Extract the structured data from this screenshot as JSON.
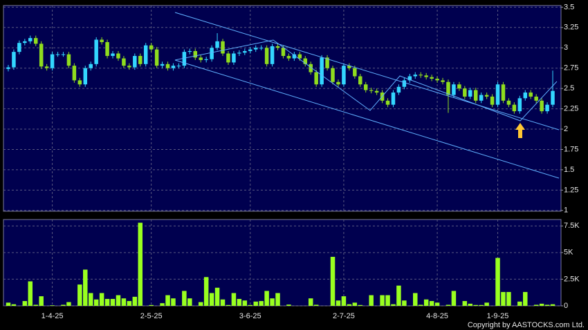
{
  "chart_data": [
    {
      "type": "candlestick",
      "open": [
        2.74,
        2.76,
        2.95,
        3.06,
        3.08,
        3.12,
        3.05,
        2.77,
        2.75,
        2.92,
        2.92,
        2.92,
        2.78,
        2.6,
        2.55,
        2.75,
        2.8,
        3.1,
        3.07,
        2.9,
        2.93,
        2.87,
        2.78,
        2.76,
        2.9,
        2.8,
        3.03,
        2.98,
        2.78,
        2.8,
        2.75,
        2.78,
        2.78,
        2.95,
        2.96,
        2.88,
        2.85,
        2.86,
        3.0,
        3.08,
        2.93,
        2.82,
        2.93,
        2.94,
        2.96,
        2.98,
        3.0,
        3.0,
        2.8,
        3.02,
        3.0,
        2.9,
        2.87,
        2.92,
        2.87,
        2.8,
        2.7,
        2.55,
        2.88,
        2.75,
        2.58,
        2.55,
        2.78,
        2.75,
        2.65,
        2.55,
        2.48,
        2.47,
        2.45,
        2.35,
        2.3,
        2.45,
        2.52,
        2.6,
        2.65,
        2.67,
        2.66,
        2.64,
        2.62,
        2.6,
        2.58,
        2.42,
        2.55,
        2.5,
        2.4,
        2.48,
        2.35,
        2.42,
        2.4,
        2.3,
        2.55,
        2.35,
        2.3,
        2.22,
        2.38,
        2.45,
        2.4,
        2.35,
        2.22,
        2.3
      ],
      "high": [
        2.79,
        2.98,
        3.09,
        3.11,
        3.15,
        3.15,
        3.08,
        2.8,
        2.95,
        2.95,
        2.95,
        2.95,
        2.81,
        2.63,
        2.78,
        2.83,
        3.13,
        3.13,
        3.1,
        2.96,
        2.96,
        2.9,
        2.81,
        2.93,
        2.93,
        3.06,
        3.06,
        3.01,
        2.83,
        2.83,
        2.81,
        2.81,
        2.98,
        2.99,
        2.99,
        2.91,
        2.89,
        3.03,
        3.18,
        3.11,
        2.96,
        2.96,
        2.97,
        2.99,
        3.01,
        3.03,
        3.03,
        3.03,
        3.05,
        3.05,
        3.03,
        2.93,
        2.95,
        2.95,
        2.9,
        2.83,
        2.73,
        2.91,
        2.91,
        2.78,
        2.61,
        2.81,
        2.81,
        2.78,
        2.68,
        2.58,
        2.51,
        2.5,
        2.48,
        2.38,
        2.48,
        2.55,
        2.63,
        2.68,
        2.7,
        2.7,
        2.69,
        2.67,
        2.65,
        2.63,
        2.61,
        2.58,
        2.58,
        2.53,
        2.51,
        2.51,
        2.45,
        2.45,
        2.43,
        2.58,
        2.58,
        2.38,
        2.33,
        2.41,
        2.48,
        2.48,
        2.43,
        2.38,
        2.33,
        2.72
      ],
      "low": [
        2.71,
        2.73,
        2.92,
        3.03,
        3.05,
        3.02,
        2.74,
        2.72,
        2.72,
        2.89,
        2.89,
        2.75,
        2.57,
        2.52,
        2.52,
        2.72,
        2.77,
        3.04,
        2.87,
        2.87,
        2.84,
        2.75,
        2.73,
        2.73,
        2.77,
        2.77,
        2.95,
        2.75,
        2.75,
        2.72,
        2.72,
        2.75,
        2.75,
        2.92,
        2.85,
        2.82,
        2.82,
        2.83,
        2.97,
        2.9,
        2.79,
        2.79,
        2.9,
        2.91,
        2.93,
        2.95,
        2.97,
        2.77,
        2.77,
        2.97,
        2.87,
        2.84,
        2.84,
        2.84,
        2.77,
        2.67,
        2.52,
        2.52,
        2.72,
        2.55,
        2.52,
        2.52,
        2.72,
        2.62,
        2.52,
        2.45,
        2.44,
        2.42,
        2.32,
        2.27,
        2.27,
        2.42,
        2.49,
        2.57,
        2.62,
        2.63,
        2.61,
        2.59,
        2.57,
        2.55,
        2.2,
        2.39,
        2.47,
        2.37,
        2.37,
        2.32,
        2.32,
        2.37,
        2.27,
        2.27,
        2.32,
        2.27,
        2.19,
        2.19,
        2.35,
        2.37,
        2.32,
        2.19,
        2.19,
        2.27
      ],
      "close": [
        2.76,
        2.95,
        3.06,
        3.08,
        3.12,
        3.05,
        2.77,
        2.75,
        2.92,
        2.92,
        2.92,
        2.78,
        2.6,
        2.55,
        2.75,
        2.8,
        3.1,
        3.07,
        2.9,
        2.93,
        2.87,
        2.78,
        2.76,
        2.9,
        2.8,
        3.03,
        2.98,
        2.78,
        2.8,
        2.75,
        2.78,
        2.78,
        2.95,
        2.96,
        2.88,
        2.85,
        2.86,
        3.0,
        3.08,
        2.93,
        2.82,
        2.93,
        2.94,
        2.96,
        2.98,
        3.0,
        3.0,
        2.8,
        3.02,
        3.0,
        2.9,
        2.87,
        2.92,
        2.87,
        2.8,
        2.7,
        2.55,
        2.88,
        2.75,
        2.58,
        2.55,
        2.78,
        2.75,
        2.65,
        2.55,
        2.48,
        2.47,
        2.45,
        2.35,
        2.3,
        2.45,
        2.52,
        2.6,
        2.65,
        2.67,
        2.66,
        2.64,
        2.62,
        2.6,
        2.58,
        2.42,
        2.55,
        2.5,
        2.4,
        2.48,
        2.35,
        2.42,
        2.4,
        2.3,
        2.55,
        2.35,
        2.3,
        2.22,
        2.38,
        2.45,
        2.4,
        2.35,
        2.22,
        2.3,
        2.47
      ],
      "up_color": "#33d6ff",
      "down_color": "#8fdc1e",
      "ylim": [
        0.99,
        3.52
      ],
      "yticks": [
        1,
        1.25,
        1.5,
        1.75,
        2,
        2.25,
        2.5,
        2.75,
        3,
        3.25,
        3.5
      ],
      "grid": true
    },
    {
      "type": "bar",
      "categories": [
        null,
        null,
        null,
        null,
        null,
        null,
        null,
        null,
        "1-4-25",
        null,
        null,
        null,
        null,
        null,
        null,
        null,
        null,
        null,
        null,
        null,
        null,
        null,
        null,
        null,
        null,
        null,
        "2-5-25",
        null,
        null,
        null,
        null,
        null,
        null,
        null,
        null,
        null,
        null,
        null,
        null,
        null,
        null,
        null,
        null,
        null,
        "3-6-25",
        null,
        null,
        null,
        null,
        null,
        null,
        null,
        null,
        null,
        null,
        null,
        null,
        null,
        null,
        null,
        null,
        "2-7-25",
        null,
        null,
        null,
        null,
        null,
        null,
        null,
        null,
        null,
        null,
        null,
        null,
        null,
        null,
        null,
        null,
        "4-8-25",
        null,
        null,
        null,
        null,
        null,
        null,
        null,
        null,
        null,
        null,
        "1-9-25",
        null,
        null,
        null,
        null,
        null,
        null,
        null,
        null,
        null,
        null
      ],
      "values": [
        300,
        150,
        0,
        450,
        2300,
        100,
        900,
        0,
        50,
        0,
        100,
        350,
        0,
        2000,
        3400,
        1200,
        600,
        1200,
        650,
        650,
        1000,
        700,
        450,
        850,
        7800,
        0,
        80,
        0,
        250,
        1000,
        700,
        0,
        1400,
        700,
        0,
        350,
        2700,
        1200,
        1700,
        600,
        80,
        1200,
        650,
        500,
        80,
        400,
        450,
        1400,
        700,
        1200,
        0,
        120,
        0,
        0,
        0,
        700,
        100,
        0,
        0,
        4600,
        500,
        900,
        150,
        300,
        80,
        0,
        1000,
        0,
        1000,
        1000,
        150,
        1900,
        500,
        0,
        1200,
        100,
        600,
        450,
        300,
        0,
        100,
        1400,
        0,
        450,
        200,
        80,
        80,
        300,
        0,
        4500,
        1300,
        1300,
        0,
        400,
        1300,
        0,
        100,
        200,
        100,
        150
      ],
      "color": "#99ff1f",
      "ylim": [
        0,
        8100
      ],
      "yticks": [
        0,
        {
          "value": 2500,
          "label": "2.5K"
        },
        {
          "value": 5000,
          "label": "5K"
        },
        {
          "value": 7500,
          "label": "7.5K"
        }
      ],
      "grid": true
    }
  ],
  "footer": "Copyright by AASTOCKS.com Ltd."
}
